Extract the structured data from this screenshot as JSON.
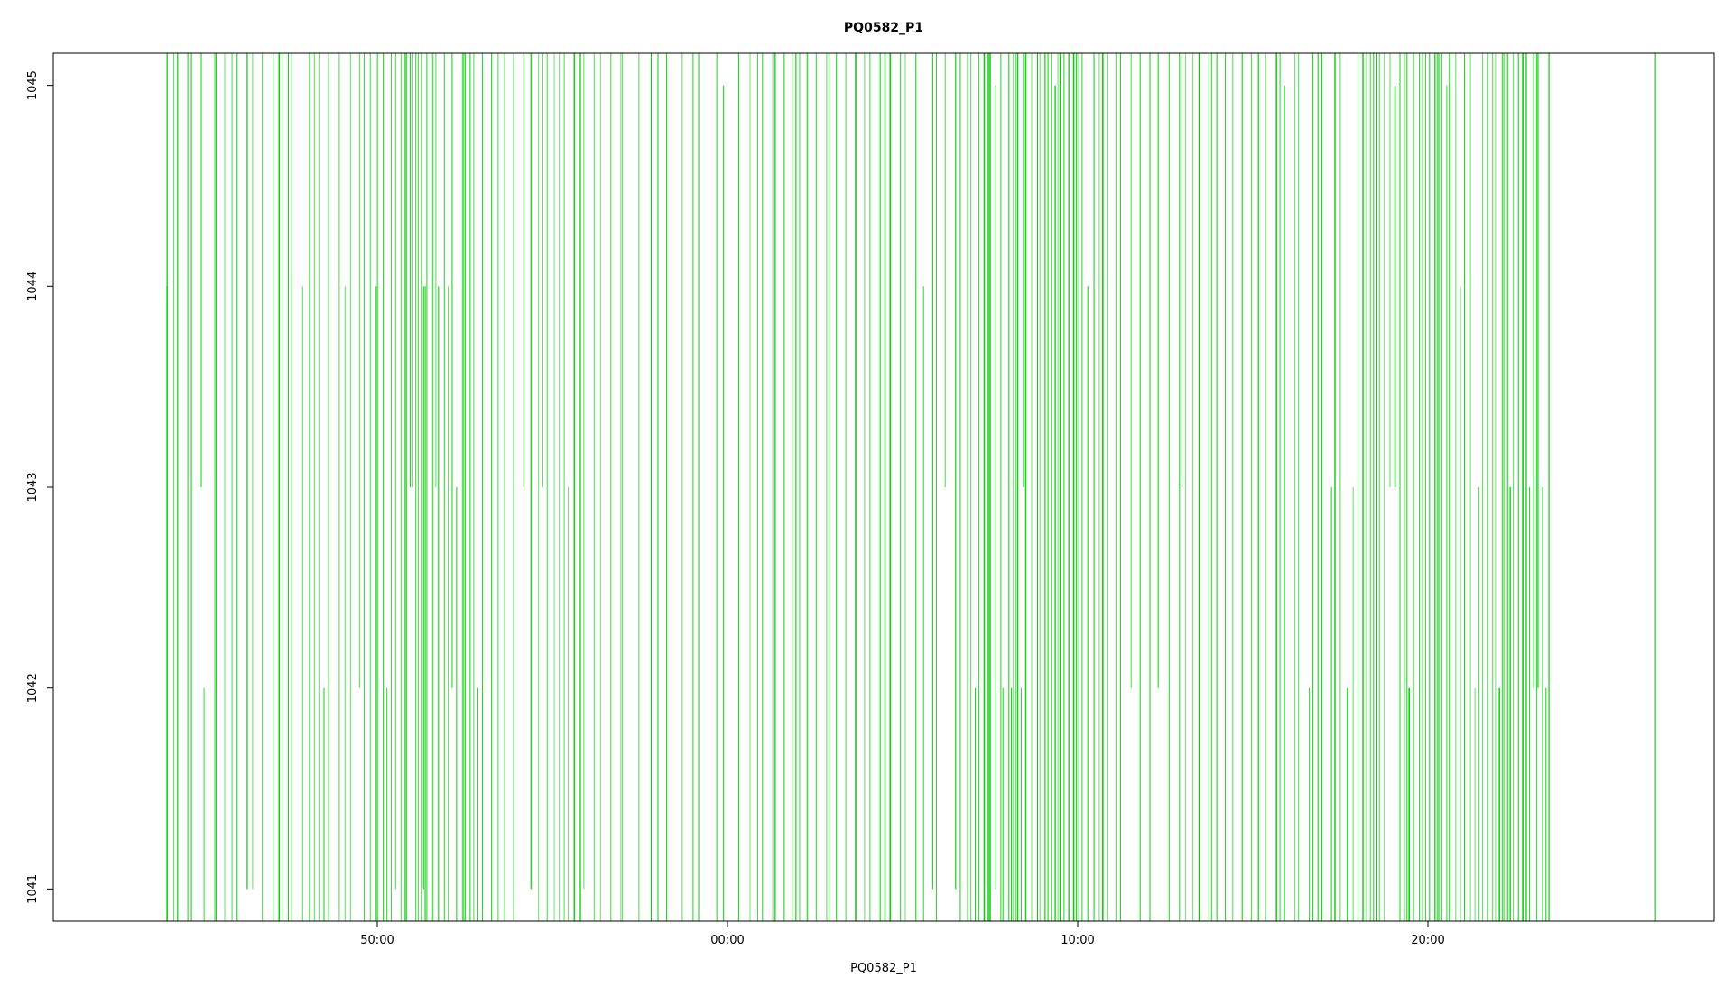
{
  "chart_data": {
    "type": "line",
    "title": "PQ0582_P1",
    "xlabel": "PQ0582_P1",
    "ylabel": "",
    "x_unit": "minutes relative to 00:00",
    "xlim": [
      -95,
      380
    ],
    "ylim": [
      1040.84,
      1045.16
    ],
    "x_ticks": [
      {
        "value": -100,
        "label": "50:00"
      },
      {
        "value": 0,
        "label": "00:00"
      },
      {
        "value": 100,
        "label": "10:00"
      },
      {
        "value": 200,
        "label": "20:00"
      }
    ],
    "y_ticks": [
      {
        "value": 1041,
        "label": "1041"
      },
      {
        "value": 1042,
        "label": "1042"
      },
      {
        "value": 1043,
        "label": "1043"
      },
      {
        "value": 1044,
        "label": "1044"
      },
      {
        "value": 1045,
        "label": "1045"
      }
    ],
    "series": [
      {
        "name": "",
        "color": "#00cc00",
        "style": "dense vertical spikes (step-like series)",
        "y_range": [
          1041,
          1045
        ]
      }
    ],
    "spike_regions": [
      {
        "x_start": -160,
        "x_end": -102,
        "density": "medium"
      },
      {
        "x_start": -102,
        "x_end": -70,
        "density": "high"
      },
      {
        "x_start": -70,
        "x_end": -30,
        "density": "medium"
      },
      {
        "x_start": -30,
        "x_end": 10,
        "density": "low"
      },
      {
        "x_start": 10,
        "x_end": 75,
        "density": "medium"
      },
      {
        "x_start": 75,
        "x_end": 100,
        "density": "high"
      },
      {
        "x_start": 100,
        "x_end": 180,
        "density": "medium"
      },
      {
        "x_start": 180,
        "x_end": 235,
        "density": "high"
      }
    ],
    "isolated_spikes_x": [
      -160,
      -157,
      -146,
      -137,
      265
    ],
    "grid": false,
    "legend": "none"
  }
}
